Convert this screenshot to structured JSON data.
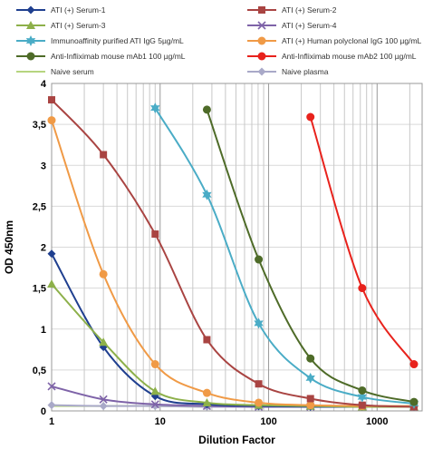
{
  "chart_data": {
    "type": "line",
    "xlabel": "Dilution Factor",
    "ylabel": "OD 450nm",
    "xscale": "log",
    "xlim": [
      1,
      2600
    ],
    "ylim": [
      0,
      4
    ],
    "y_ticks": [
      "0",
      "0,5",
      "1",
      "1,5",
      "2",
      "2,5",
      "3",
      "3,5",
      "4"
    ],
    "x_ticks": [
      "1",
      "10",
      "100",
      "1000"
    ],
    "legend_position": "top",
    "grid": true,
    "series": [
      {
        "name": "ATI (+) Serum-1",
        "color": "#1f3f8f",
        "marker": "diamond",
        "x": [
          1,
          3,
          9,
          27,
          81,
          243,
          729,
          2187
        ],
        "y": [
          1.92,
          0.78,
          0.18,
          0.08,
          0.06,
          0.05,
          0.05,
          0.05
        ]
      },
      {
        "name": "ATI (+) Serum-2",
        "color": "#a94442",
        "marker": "square",
        "x": [
          1,
          3,
          9,
          27,
          81,
          243,
          729,
          2187
        ],
        "y": [
          3.8,
          3.13,
          2.16,
          0.87,
          0.33,
          0.15,
          0.07,
          0.05
        ]
      },
      {
        "name": "ATI (+) Serum-3",
        "color": "#8db04a",
        "marker": "triangle",
        "x": [
          1,
          3,
          9,
          27,
          81,
          243,
          729,
          2187
        ],
        "y": [
          1.55,
          0.84,
          0.24,
          0.1,
          0.07,
          0.06,
          0.05,
          0.05
        ]
      },
      {
        "name": "ATI (+) Serum-4",
        "color": "#7e63a8",
        "marker": "x",
        "x": [
          1,
          3,
          9,
          27,
          81,
          243,
          729,
          2187
        ],
        "y": [
          0.3,
          0.14,
          0.08,
          0.06,
          0.05,
          0.05,
          0.05,
          0.05
        ]
      },
      {
        "name": "Immunoaffinity purified ATI IgG 5µg/mL",
        "color": "#4aacc6",
        "marker": "star",
        "x": [
          9,
          27,
          81,
          243,
          729,
          2187
        ],
        "y": [
          3.7,
          2.64,
          1.07,
          0.4,
          0.17,
          0.09
        ]
      },
      {
        "name": "ATI (+) Human polyclonal IgG 100 µg/mL",
        "color": "#f09a46",
        "marker": "circle",
        "x": [
          1,
          3,
          9,
          27,
          81,
          243,
          729,
          2187
        ],
        "y": [
          3.55,
          1.67,
          0.57,
          0.22,
          0.1,
          0.07,
          0.06,
          0.06
        ]
      },
      {
        "name": "Anti-Infliximab mouse mAb1 100 µg/mL",
        "color": "#4e6b28",
        "marker": "circle",
        "x": [
          27,
          81,
          243,
          729,
          2187
        ],
        "y": [
          3.68,
          1.85,
          0.64,
          0.25,
          0.11
        ]
      },
      {
        "name": "Anti-Infliximab mouse mAb2 100 µg/mL",
        "color": "#e8221c",
        "marker": "circle",
        "x": [
          243,
          729,
          2187
        ],
        "y": [
          3.59,
          1.5,
          0.57
        ]
      },
      {
        "name": "Naive serum",
        "color": "#b6d57f",
        "marker": "none",
        "x": [
          1,
          3,
          9,
          27,
          81,
          243,
          729,
          2187
        ],
        "y": [
          0.06,
          0.06,
          0.06,
          0.05,
          0.05,
          0.05,
          0.05,
          0.05
        ]
      },
      {
        "name": "Naive plasma",
        "color": "#a9a9c8",
        "marker": "diamond",
        "x": [
          1,
          3,
          9,
          27,
          81,
          243,
          729,
          2187
        ],
        "y": [
          0.07,
          0.06,
          0.06,
          0.05,
          0.05,
          0.05,
          0.05,
          0.05
        ]
      }
    ]
  }
}
